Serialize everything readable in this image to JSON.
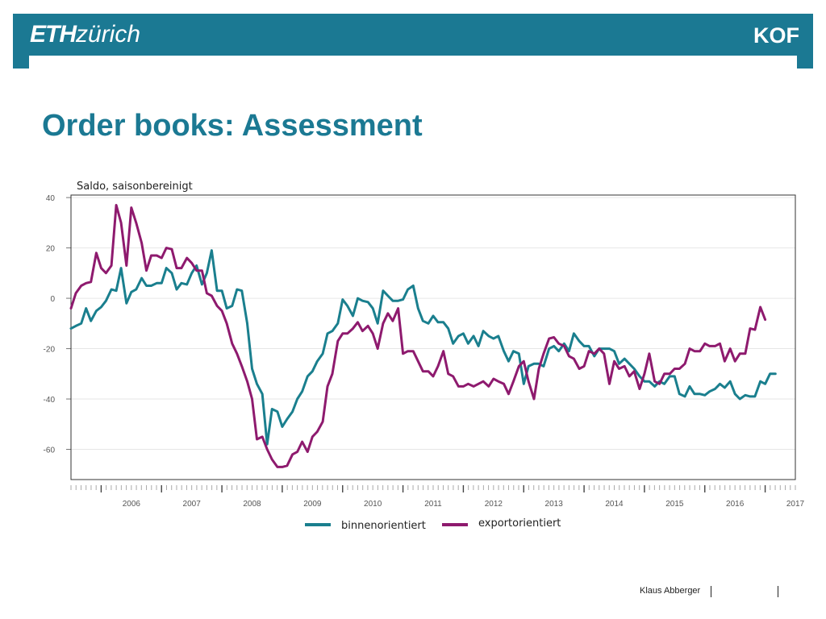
{
  "header": {
    "logo_left_bold": "ETH",
    "logo_left_rest": "zürich",
    "logo_right": "KOF"
  },
  "slide": {
    "title": "Order books: Assessment",
    "footer_author": "Klaus Abberger"
  },
  "colors": {
    "brand": "#1b7993",
    "series_binnen": "#1a7f8e",
    "series_export": "#8e1a6e"
  },
  "chart_data": {
    "type": "line",
    "ylabel": "Saldo, saisonbereinigt",
    "ylim": [
      -72,
      41
    ],
    "yticks": [
      40,
      20,
      0,
      -20,
      -40,
      -60
    ],
    "xlim": [
      2005.5,
      2017.5
    ],
    "xticks": [
      "2006",
      "2007",
      "2008",
      "2009",
      "2010",
      "2011",
      "2012",
      "2013",
      "2014",
      "2015",
      "2016",
      "2017"
    ],
    "grid": true,
    "legend_position": "bottom",
    "series": [
      {
        "name": "binnenorientiert",
        "color": "#1a7f8e",
        "points": [
          [
            2005.5,
            -12
          ],
          [
            2005.58,
            -11
          ],
          [
            2005.67,
            -10
          ],
          [
            2005.75,
            -4
          ],
          [
            2005.83,
            -9
          ],
          [
            2005.92,
            -5
          ],
          [
            2006.0,
            -3.5
          ],
          [
            2006.08,
            -1
          ],
          [
            2006.17,
            3.5
          ],
          [
            2006.25,
            3
          ],
          [
            2006.33,
            12
          ],
          [
            2006.42,
            -2
          ],
          [
            2006.5,
            2.5
          ],
          [
            2006.58,
            3.5
          ],
          [
            2006.67,
            8
          ],
          [
            2006.75,
            5
          ],
          [
            2006.83,
            5
          ],
          [
            2006.92,
            6
          ],
          [
            2007.0,
            6
          ],
          [
            2007.08,
            12
          ],
          [
            2007.17,
            10
          ],
          [
            2007.25,
            3.5
          ],
          [
            2007.33,
            6
          ],
          [
            2007.42,
            5.5
          ],
          [
            2007.5,
            10
          ],
          [
            2007.58,
            13
          ],
          [
            2007.67,
            5.5
          ],
          [
            2007.75,
            10
          ],
          [
            2007.83,
            19
          ],
          [
            2007.92,
            3
          ],
          [
            2008.0,
            3
          ],
          [
            2008.08,
            -4
          ],
          [
            2008.17,
            -3
          ],
          [
            2008.25,
            3.5
          ],
          [
            2008.33,
            3
          ],
          [
            2008.42,
            -10
          ],
          [
            2008.5,
            -28
          ],
          [
            2008.58,
            -34
          ],
          [
            2008.67,
            -38
          ],
          [
            2008.75,
            -58
          ],
          [
            2008.83,
            -44
          ],
          [
            2008.92,
            -45
          ],
          [
            2009.0,
            -51
          ],
          [
            2009.08,
            -48
          ],
          [
            2009.17,
            -45
          ],
          [
            2009.25,
            -40
          ],
          [
            2009.33,
            -37
          ],
          [
            2009.42,
            -31
          ],
          [
            2009.5,
            -29
          ],
          [
            2009.58,
            -25
          ],
          [
            2009.67,
            -22
          ],
          [
            2009.75,
            -14
          ],
          [
            2009.83,
            -13
          ],
          [
            2009.92,
            -10
          ],
          [
            2010.0,
            -0.5
          ],
          [
            2010.08,
            -3
          ],
          [
            2010.17,
            -7
          ],
          [
            2010.25,
            0
          ],
          [
            2010.33,
            -1
          ],
          [
            2010.42,
            -1.5
          ],
          [
            2010.5,
            -4
          ],
          [
            2010.58,
            -10
          ],
          [
            2010.67,
            3
          ],
          [
            2010.75,
            1
          ],
          [
            2010.83,
            -1
          ],
          [
            2010.92,
            -1
          ],
          [
            2011.0,
            -0.5
          ],
          [
            2011.08,
            3.5
          ],
          [
            2011.17,
            5
          ],
          [
            2011.25,
            -4
          ],
          [
            2011.33,
            -9
          ],
          [
            2011.42,
            -10
          ],
          [
            2011.5,
            -7
          ],
          [
            2011.58,
            -9.5
          ],
          [
            2011.67,
            -9.5
          ],
          [
            2011.75,
            -12
          ],
          [
            2011.83,
            -18
          ],
          [
            2011.92,
            -15
          ],
          [
            2012.0,
            -14
          ],
          [
            2012.08,
            -18
          ],
          [
            2012.17,
            -15
          ],
          [
            2012.25,
            -19
          ],
          [
            2012.33,
            -13
          ],
          [
            2012.42,
            -15
          ],
          [
            2012.5,
            -16
          ],
          [
            2012.58,
            -15
          ],
          [
            2012.67,
            -21
          ],
          [
            2012.75,
            -25
          ],
          [
            2012.83,
            -21
          ],
          [
            2012.92,
            -22
          ],
          [
            2013.0,
            -34
          ],
          [
            2013.08,
            -27
          ],
          [
            2013.17,
            -26
          ],
          [
            2013.25,
            -26
          ],
          [
            2013.33,
            -27
          ],
          [
            2013.42,
            -20
          ],
          [
            2013.5,
            -19
          ],
          [
            2013.58,
            -21
          ],
          [
            2013.67,
            -18
          ],
          [
            2013.75,
            -21
          ],
          [
            2013.83,
            -14
          ],
          [
            2013.92,
            -17
          ],
          [
            2014.0,
            -19
          ],
          [
            2014.08,
            -19
          ],
          [
            2014.17,
            -23
          ],
          [
            2014.25,
            -20
          ],
          [
            2014.33,
            -20
          ],
          [
            2014.42,
            -20
          ],
          [
            2014.5,
            -21
          ],
          [
            2014.58,
            -26
          ],
          [
            2014.67,
            -24
          ],
          [
            2014.75,
            -26
          ],
          [
            2014.83,
            -28
          ],
          [
            2014.92,
            -31
          ],
          [
            2015.0,
            -33
          ],
          [
            2015.08,
            -33
          ],
          [
            2015.17,
            -35
          ],
          [
            2015.25,
            -33
          ],
          [
            2015.33,
            -34
          ],
          [
            2015.42,
            -31
          ],
          [
            2015.5,
            -31
          ],
          [
            2015.58,
            -38
          ],
          [
            2015.67,
            -39
          ],
          [
            2015.75,
            -35
          ],
          [
            2015.83,
            -38
          ],
          [
            2015.92,
            -38
          ],
          [
            2016.0,
            -38.5
          ],
          [
            2016.08,
            -37
          ],
          [
            2016.17,
            -36
          ],
          [
            2016.25,
            -34
          ],
          [
            2016.33,
            -35.5
          ],
          [
            2016.42,
            -33
          ],
          [
            2016.5,
            -38
          ],
          [
            2016.58,
            -40
          ],
          [
            2016.67,
            -38.5
          ],
          [
            2016.75,
            -39
          ],
          [
            2016.83,
            -39
          ],
          [
            2016.92,
            -33
          ],
          [
            2017.0,
            -34
          ],
          [
            2017.08,
            -30
          ],
          [
            2017.17,
            -30
          ]
        ]
      },
      {
        "name": "exportorientiert",
        "color": "#8e1a6e",
        "points": [
          [
            2005.5,
            -4
          ],
          [
            2005.58,
            2
          ],
          [
            2005.67,
            5
          ],
          [
            2005.75,
            6
          ],
          [
            2005.83,
            6.5
          ],
          [
            2005.92,
            18
          ],
          [
            2006.0,
            12
          ],
          [
            2006.08,
            10
          ],
          [
            2006.17,
            13
          ],
          [
            2006.25,
            37
          ],
          [
            2006.33,
            30
          ],
          [
            2006.42,
            13
          ],
          [
            2006.5,
            36
          ],
          [
            2006.58,
            30
          ],
          [
            2006.67,
            22
          ],
          [
            2006.75,
            11
          ],
          [
            2006.83,
            17
          ],
          [
            2006.92,
            17
          ],
          [
            2007.0,
            16
          ],
          [
            2007.08,
            20
          ],
          [
            2007.17,
            19.5
          ],
          [
            2007.25,
            12
          ],
          [
            2007.33,
            12
          ],
          [
            2007.42,
            16
          ],
          [
            2007.5,
            14
          ],
          [
            2007.58,
            11
          ],
          [
            2007.67,
            11
          ],
          [
            2007.75,
            2
          ],
          [
            2007.83,
            1
          ],
          [
            2007.92,
            -3
          ],
          [
            2008.0,
            -5
          ],
          [
            2008.08,
            -10
          ],
          [
            2008.17,
            -18
          ],
          [
            2008.25,
            -22
          ],
          [
            2008.33,
            -27
          ],
          [
            2008.42,
            -33
          ],
          [
            2008.5,
            -40
          ],
          [
            2008.58,
            -56
          ],
          [
            2008.67,
            -55
          ],
          [
            2008.75,
            -60
          ],
          [
            2008.83,
            -64
          ],
          [
            2008.92,
            -67
          ],
          [
            2009.0,
            -67
          ],
          [
            2009.08,
            -66.5
          ],
          [
            2009.17,
            -62
          ],
          [
            2009.25,
            -61
          ],
          [
            2009.33,
            -57
          ],
          [
            2009.42,
            -61
          ],
          [
            2009.5,
            -55
          ],
          [
            2009.58,
            -53
          ],
          [
            2009.67,
            -49
          ],
          [
            2009.75,
            -35
          ],
          [
            2009.83,
            -30
          ],
          [
            2009.92,
            -17
          ],
          [
            2010.0,
            -14
          ],
          [
            2010.08,
            -14
          ],
          [
            2010.17,
            -12
          ],
          [
            2010.25,
            -9.5
          ],
          [
            2010.33,
            -13
          ],
          [
            2010.42,
            -11
          ],
          [
            2010.5,
            -14
          ],
          [
            2010.58,
            -20
          ],
          [
            2010.67,
            -10
          ],
          [
            2010.75,
            -6
          ],
          [
            2010.83,
            -9
          ],
          [
            2010.92,
            -4
          ],
          [
            2011.0,
            -22
          ],
          [
            2011.08,
            -21
          ],
          [
            2011.17,
            -21
          ],
          [
            2011.25,
            -25
          ],
          [
            2011.33,
            -29
          ],
          [
            2011.42,
            -29
          ],
          [
            2011.5,
            -31
          ],
          [
            2011.58,
            -27
          ],
          [
            2011.67,
            -21
          ],
          [
            2011.75,
            -30
          ],
          [
            2011.83,
            -31
          ],
          [
            2011.92,
            -35
          ],
          [
            2012.0,
            -35
          ],
          [
            2012.08,
            -34
          ],
          [
            2012.17,
            -35
          ],
          [
            2012.25,
            -34
          ],
          [
            2012.33,
            -33
          ],
          [
            2012.42,
            -35
          ],
          [
            2012.5,
            -32
          ],
          [
            2012.58,
            -33
          ],
          [
            2012.67,
            -34
          ],
          [
            2012.75,
            -38
          ],
          [
            2012.83,
            -33
          ],
          [
            2012.92,
            -27
          ],
          [
            2013.0,
            -25
          ],
          [
            2013.08,
            -33
          ],
          [
            2013.17,
            -40
          ],
          [
            2013.25,
            -28
          ],
          [
            2013.33,
            -22
          ],
          [
            2013.42,
            -16
          ],
          [
            2013.5,
            -15.5
          ],
          [
            2013.58,
            -18
          ],
          [
            2013.67,
            -19
          ],
          [
            2013.75,
            -23
          ],
          [
            2013.83,
            -24
          ],
          [
            2013.92,
            -28
          ],
          [
            2014.0,
            -27
          ],
          [
            2014.08,
            -21
          ],
          [
            2014.17,
            -22
          ],
          [
            2014.25,
            -20
          ],
          [
            2014.33,
            -22
          ],
          [
            2014.42,
            -34
          ],
          [
            2014.5,
            -25
          ],
          [
            2014.58,
            -28
          ],
          [
            2014.67,
            -27
          ],
          [
            2014.75,
            -31
          ],
          [
            2014.83,
            -29
          ],
          [
            2014.92,
            -36
          ],
          [
            2015.0,
            -30
          ],
          [
            2015.08,
            -22
          ],
          [
            2015.17,
            -33
          ],
          [
            2015.25,
            -34
          ],
          [
            2015.33,
            -30
          ],
          [
            2015.42,
            -30
          ],
          [
            2015.5,
            -28
          ],
          [
            2015.58,
            -28
          ],
          [
            2015.67,
            -26
          ],
          [
            2015.75,
            -20
          ],
          [
            2015.83,
            -21
          ],
          [
            2015.92,
            -21
          ],
          [
            2016.0,
            -18
          ],
          [
            2016.08,
            -19
          ],
          [
            2016.17,
            -19
          ],
          [
            2016.25,
            -18
          ],
          [
            2016.33,
            -25
          ],
          [
            2016.42,
            -20
          ],
          [
            2016.5,
            -25
          ],
          [
            2016.58,
            -22
          ],
          [
            2016.67,
            -22
          ],
          [
            2016.75,
            -12
          ],
          [
            2016.83,
            -12.5
          ],
          [
            2016.92,
            -3.5
          ],
          [
            2017.0,
            -8.5
          ]
        ]
      }
    ]
  }
}
